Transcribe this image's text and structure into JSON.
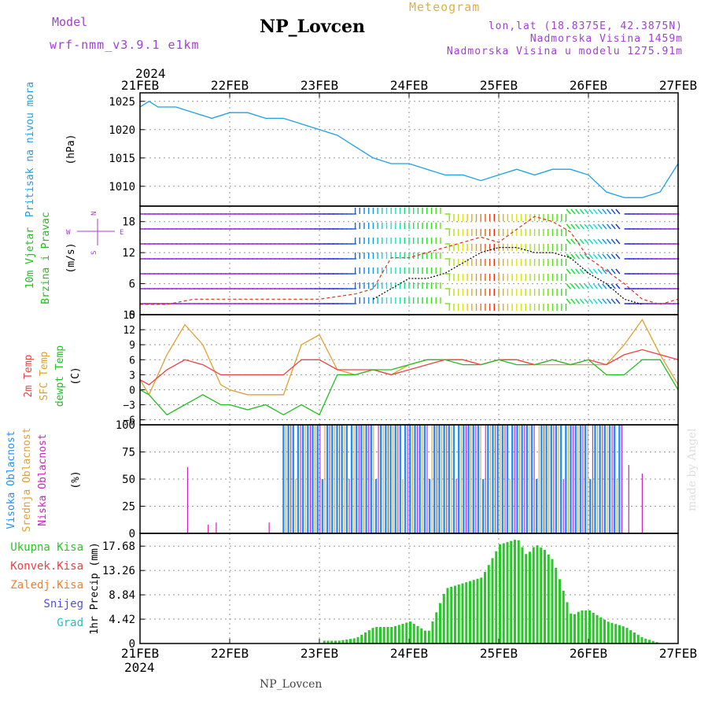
{
  "header": {
    "model_label": "Model",
    "model_name": "wrf-nmm_v3.9.1 e1km",
    "station": "NP_Lovcen",
    "meteogram": "Meteogram",
    "lonlat": "lon,lat (18.8375E, 42.3875N)",
    "altitude": "Nadmorska Visina 1459m",
    "model_altitude": "Nadmorska Visina u modelu 1275.91m"
  },
  "footer": {
    "station": "NP_Lovcen",
    "made_by": "made by Angel"
  },
  "colors": {
    "pressure": "#1ea0e6",
    "gust": "#e03020",
    "wind_mean": "#000000",
    "temp2m": "#f04040",
    "sfc_temp": "#e0a030",
    "dewpt": "#20c020",
    "high_cloud": "#1e90ff",
    "mid_cloud": "#e0a030",
    "low_cloud": "#d020c0",
    "precip": "#28c828"
  },
  "chart_data": [
    {
      "type": "line",
      "panel": "pressure",
      "ylabel": "(hPa)",
      "side_label": "Pritisak na nivou mora",
      "yticks": [
        1010,
        1015,
        1020,
        1025
      ],
      "ylim": [
        1006.5,
        1026.5
      ],
      "x_days": [
        "21FEB",
        "22FEB",
        "23FEB",
        "24FEB",
        "25FEB",
        "26FEB",
        "27FEB"
      ],
      "x_year": "2024",
      "series": [
        {
          "x": [
            0,
            0.1,
            0.2,
            0.4,
            0.6,
            0.8,
            1.0,
            1.2,
            1.4,
            1.6,
            1.8,
            2.0,
            2.2,
            2.4,
            2.6,
            2.8,
            3.0,
            3.2,
            3.4,
            3.6,
            3.8,
            4.0,
            4.2,
            4.4,
            4.6,
            4.8,
            5.0,
            5.2,
            5.4,
            5.6,
            5.8,
            6.0
          ],
          "y": [
            1024,
            1025,
            1024,
            1024,
            1023,
            1022,
            1023,
            1023,
            1022,
            1022,
            1021,
            1020,
            1019,
            1017,
            1015,
            1014,
            1014,
            1013,
            1012,
            1012,
            1011,
            1012,
            1013,
            1012,
            1013,
            1013,
            1012,
            1009,
            1008,
            1008,
            1009,
            1014
          ]
        }
      ]
    },
    {
      "type": "line",
      "panel": "wind",
      "ylabel": "(m/s)",
      "side_label_1": "10m Vjetar",
      "side_label_2": "Brzina i Pravac",
      "compass": {
        "n": "N",
        "s": "S",
        "e": "E",
        "w": "W"
      },
      "yticks": [
        0,
        6,
        12,
        18
      ],
      "ylim": [
        0,
        21
      ],
      "series": [
        {
          "name": "gust",
          "x": [
            0,
            0.3,
            0.6,
            1.0,
            1.4,
            1.8,
            2.0,
            2.4,
            2.6,
            2.8,
            3.0,
            3.2,
            3.4,
            3.6,
            3.8,
            4.0,
            4.4,
            4.6,
            4.8,
            5.0,
            5.4,
            5.6,
            5.8,
            6.0
          ],
          "y": [
            2,
            2,
            3,
            3,
            3,
            3,
            3,
            4,
            5,
            11,
            11,
            12,
            13,
            14,
            15,
            14,
            19,
            18,
            16,
            11,
            6,
            3,
            2,
            3
          ]
        },
        {
          "name": "mean",
          "x": [
            2.6,
            2.8,
            3.0,
            3.2,
            3.4,
            3.6,
            3.8,
            4.0,
            4.2,
            4.4,
            4.6,
            4.8,
            5.0,
            5.2,
            5.4,
            5.6
          ],
          "y": [
            3,
            5,
            7,
            7,
            8,
            10,
            12,
            13,
            13,
            12,
            12,
            11,
            8,
            6,
            3,
            2
          ]
        }
      ]
    },
    {
      "type": "line",
      "panel": "temperature",
      "ylabel": "(C)",
      "side_label_temp": "2m Temp",
      "side_label_sfc": "SFC Temp",
      "side_label_dewpt": "dewpt Temp",
      "yticks": [
        -6,
        -3,
        0,
        3,
        6,
        9,
        12,
        15
      ],
      "ylim": [
        -7,
        15
      ],
      "series": [
        {
          "name": "2m Temp",
          "x": [
            0,
            0.1,
            0.3,
            0.5,
            0.7,
            0.9,
            1.0,
            1.2,
            1.4,
            1.6,
            1.8,
            2.0,
            2.2,
            2.4,
            2.6,
            2.8,
            3.0,
            3.2,
            3.4,
            3.6,
            3.8,
            4.0,
            4.2,
            4.4,
            4.6,
            4.8,
            5.0,
            5.2,
            5.4,
            5.6,
            5.8,
            6.0
          ],
          "y": [
            2,
            1,
            4,
            6,
            5,
            3,
            3,
            3,
            3,
            3,
            6,
            6,
            4,
            4,
            4,
            3,
            4,
            5,
            6,
            6,
            5,
            6,
            6,
            5,
            6,
            5,
            6,
            5,
            7,
            8,
            7,
            6
          ]
        },
        {
          "name": "SFC Temp",
          "x": [
            0,
            0.1,
            0.3,
            0.5,
            0.7,
            0.9,
            1.0,
            1.2,
            1.4,
            1.6,
            1.8,
            2.0,
            2.2,
            2.4,
            2.6,
            2.8,
            3.0,
            3.2,
            3.4,
            3.6,
            3.8,
            4.0,
            4.2,
            4.4,
            4.6,
            4.8,
            5.0,
            5.2,
            5.4,
            5.6,
            5.8,
            6.0
          ],
          "y": [
            2,
            -1,
            7,
            13,
            9,
            1,
            0,
            -1,
            -1,
            -1,
            9,
            11,
            4,
            3,
            4,
            3,
            5,
            6,
            6,
            6,
            5,
            6,
            6,
            5,
            5,
            5,
            5,
            5,
            9,
            14,
            7,
            1
          ]
        },
        {
          "name": "dewpt Temp",
          "x": [
            0,
            0.1,
            0.3,
            0.5,
            0.7,
            0.9,
            1.0,
            1.2,
            1.4,
            1.6,
            1.8,
            2.0,
            2.2,
            2.4,
            2.6,
            2.8,
            3.0,
            3.2,
            3.4,
            3.6,
            3.8,
            4.0,
            4.2,
            4.4,
            4.6,
            4.8,
            5.0,
            5.2,
            5.4,
            5.6,
            5.8,
            6.0
          ],
          "y": [
            0,
            -1,
            -5,
            -3,
            -1,
            -3,
            -3,
            -4,
            -3,
            -5,
            -3,
            -5,
            3,
            3,
            4,
            4,
            5,
            6,
            6,
            5,
            5,
            6,
            5,
            5,
            6,
            5,
            6,
            3,
            3,
            6,
            6,
            0
          ]
        }
      ]
    },
    {
      "type": "bar",
      "panel": "cloud",
      "ylabel": "(%)",
      "side_label_high": "Visoka Oblacnost",
      "side_label_mid": "Srednja Oblacnost",
      "side_label_low": "Niska Oblacnost",
      "yticks": [
        0,
        25,
        50,
        75,
        100
      ],
      "ylim": [
        0,
        100
      ],
      "cloudy_period": [
        1.6,
        5.4
      ],
      "low_cloud_spikes": [
        {
          "x": 0.53,
          "y": 61
        },
        {
          "x": 0.76,
          "y": 8
        },
        {
          "x": 0.85,
          "y": 10
        },
        {
          "x": 1.44,
          "y": 10
        },
        {
          "x": 5.45,
          "y": 63
        },
        {
          "x": 5.6,
          "y": 55
        }
      ]
    },
    {
      "type": "bar",
      "panel": "precip",
      "ylabel": "1hr Precip (mm)",
      "legend": [
        "Ukupna Kisa",
        "Konvek.Kisa",
        "Zaledj.Kisa",
        "Snijeg",
        "Grad"
      ],
      "yticks": [
        0,
        4.42,
        8.84,
        13.26,
        17.68
      ],
      "ylim": [
        0,
        20
      ],
      "x": [
        2.0,
        2.2,
        2.4,
        2.6,
        2.8,
        3.0,
        3.2,
        3.4,
        3.6,
        3.8,
        4.0,
        4.2,
        4.3,
        4.4,
        4.5,
        4.6,
        4.7,
        4.8,
        4.9,
        5.0,
        5.2,
        5.4,
        5.6,
        5.8
      ],
      "values": [
        0.5,
        0.5,
        1,
        3,
        3,
        4,
        2,
        10,
        11,
        12,
        18,
        19,
        16,
        18,
        17,
        15,
        10,
        5,
        6,
        6,
        4,
        3,
        1,
        0
      ]
    }
  ]
}
